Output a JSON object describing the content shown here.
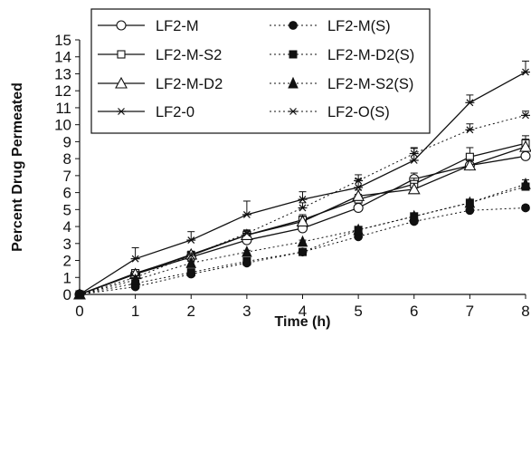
{
  "chart_data": {
    "type": "line",
    "title": "",
    "xlabel": "Time (h)",
    "ylabel": "Percent Drug Permeated",
    "xlim": [
      0,
      8
    ],
    "ylim": [
      0,
      15
    ],
    "xticks": [
      "0",
      "1",
      "2",
      "3",
      "4",
      "5",
      "6",
      "7",
      "8"
    ],
    "yticks": [
      "0",
      "1",
      "2",
      "3",
      "4",
      "5",
      "6",
      "7",
      "8",
      "9",
      "10",
      "11",
      "12",
      "13",
      "14",
      "15"
    ],
    "grid": false,
    "legend_position": "top-left",
    "x": [
      0,
      1,
      2,
      3,
      4,
      5,
      6,
      7,
      8
    ],
    "series": [
      {
        "name": "LF2-M",
        "marker": "open-circle",
        "line": "solid",
        "values": [
          0,
          1.2,
          2.2,
          3.2,
          3.9,
          5.1,
          6.8,
          7.6,
          8.15
        ],
        "errors": [
          0,
          0.15,
          0.2,
          0.25,
          0.3,
          0.35,
          0.35,
          0.4,
          0.45
        ]
      },
      {
        "name": "LF2-M-S2",
        "marker": "open-square",
        "line": "solid",
        "values": [
          0,
          1.25,
          2.3,
          3.5,
          4.4,
          5.6,
          6.5,
          8.1,
          8.9
        ],
        "errors": [
          0,
          0.15,
          0.2,
          0.25,
          0.3,
          0.3,
          0.35,
          0.55,
          0.45
        ]
      },
      {
        "name": "LF2-M-D2",
        "marker": "open-triangle",
        "line": "solid",
        "values": [
          0,
          1.2,
          2.35,
          3.5,
          4.3,
          5.8,
          6.2,
          7.6,
          8.7
        ],
        "errors": [
          0,
          0.15,
          0.2,
          0.25,
          0.3,
          0.35,
          0.35,
          0.35,
          0.45
        ]
      },
      {
        "name": "LF2-0",
        "marker": "star",
        "line": "solid",
        "values": [
          0,
          2.1,
          3.2,
          4.7,
          5.6,
          6.3,
          7.9,
          11.3,
          13.1
        ],
        "errors": [
          0,
          0.65,
          0.5,
          0.8,
          0.45,
          0.5,
          0.7,
          0.45,
          0.65
        ]
      },
      {
        "name": "LF2-M(S)",
        "marker": "filled-circle",
        "line": "dotted",
        "values": [
          0,
          0.45,
          1.2,
          1.85,
          2.5,
          3.4,
          4.3,
          4.95,
          5.1
        ],
        "errors": [
          0,
          0.1,
          0.1,
          0.1,
          0.1,
          0.15,
          0.15,
          0.2,
          0.15
        ]
      },
      {
        "name": "LF2-M-D2(S)",
        "marker": "filled-square",
        "line": "dotted",
        "values": [
          0,
          0.65,
          1.3,
          1.95,
          2.5,
          3.8,
          4.6,
          5.4,
          6.35
        ],
        "errors": [
          0,
          0.1,
          0.1,
          0.1,
          0.1,
          0.15,
          0.15,
          0.2,
          0.2
        ]
      },
      {
        "name": "LF2-M-S2(S)",
        "marker": "filled-triangle",
        "line": "dotted",
        "values": [
          0,
          0.85,
          1.85,
          2.5,
          3.1,
          3.8,
          4.6,
          5.4,
          6.5
        ],
        "errors": [
          0,
          0.1,
          0.1,
          0.1,
          0.1,
          0.15,
          0.15,
          0.2,
          0.25
        ]
      },
      {
        "name": "LF2-O(S)",
        "marker": "star",
        "line": "dotted",
        "values": [
          0,
          1.0,
          2.3,
          3.6,
          5.1,
          6.7,
          8.3,
          9.7,
          10.55
        ],
        "errors": [
          0,
          0.1,
          0.15,
          0.2,
          0.3,
          0.35,
          0.35,
          0.35,
          0.25
        ]
      }
    ],
    "legend_columns": [
      [
        "LF2-M",
        "LF2-M-S2",
        "LF2-M-D2",
        "LF2-0"
      ],
      [
        "LF2-M(S)",
        "LF2-M-D2(S)",
        "LF2-M-S2(S)",
        "LF2-O(S)"
      ]
    ]
  }
}
